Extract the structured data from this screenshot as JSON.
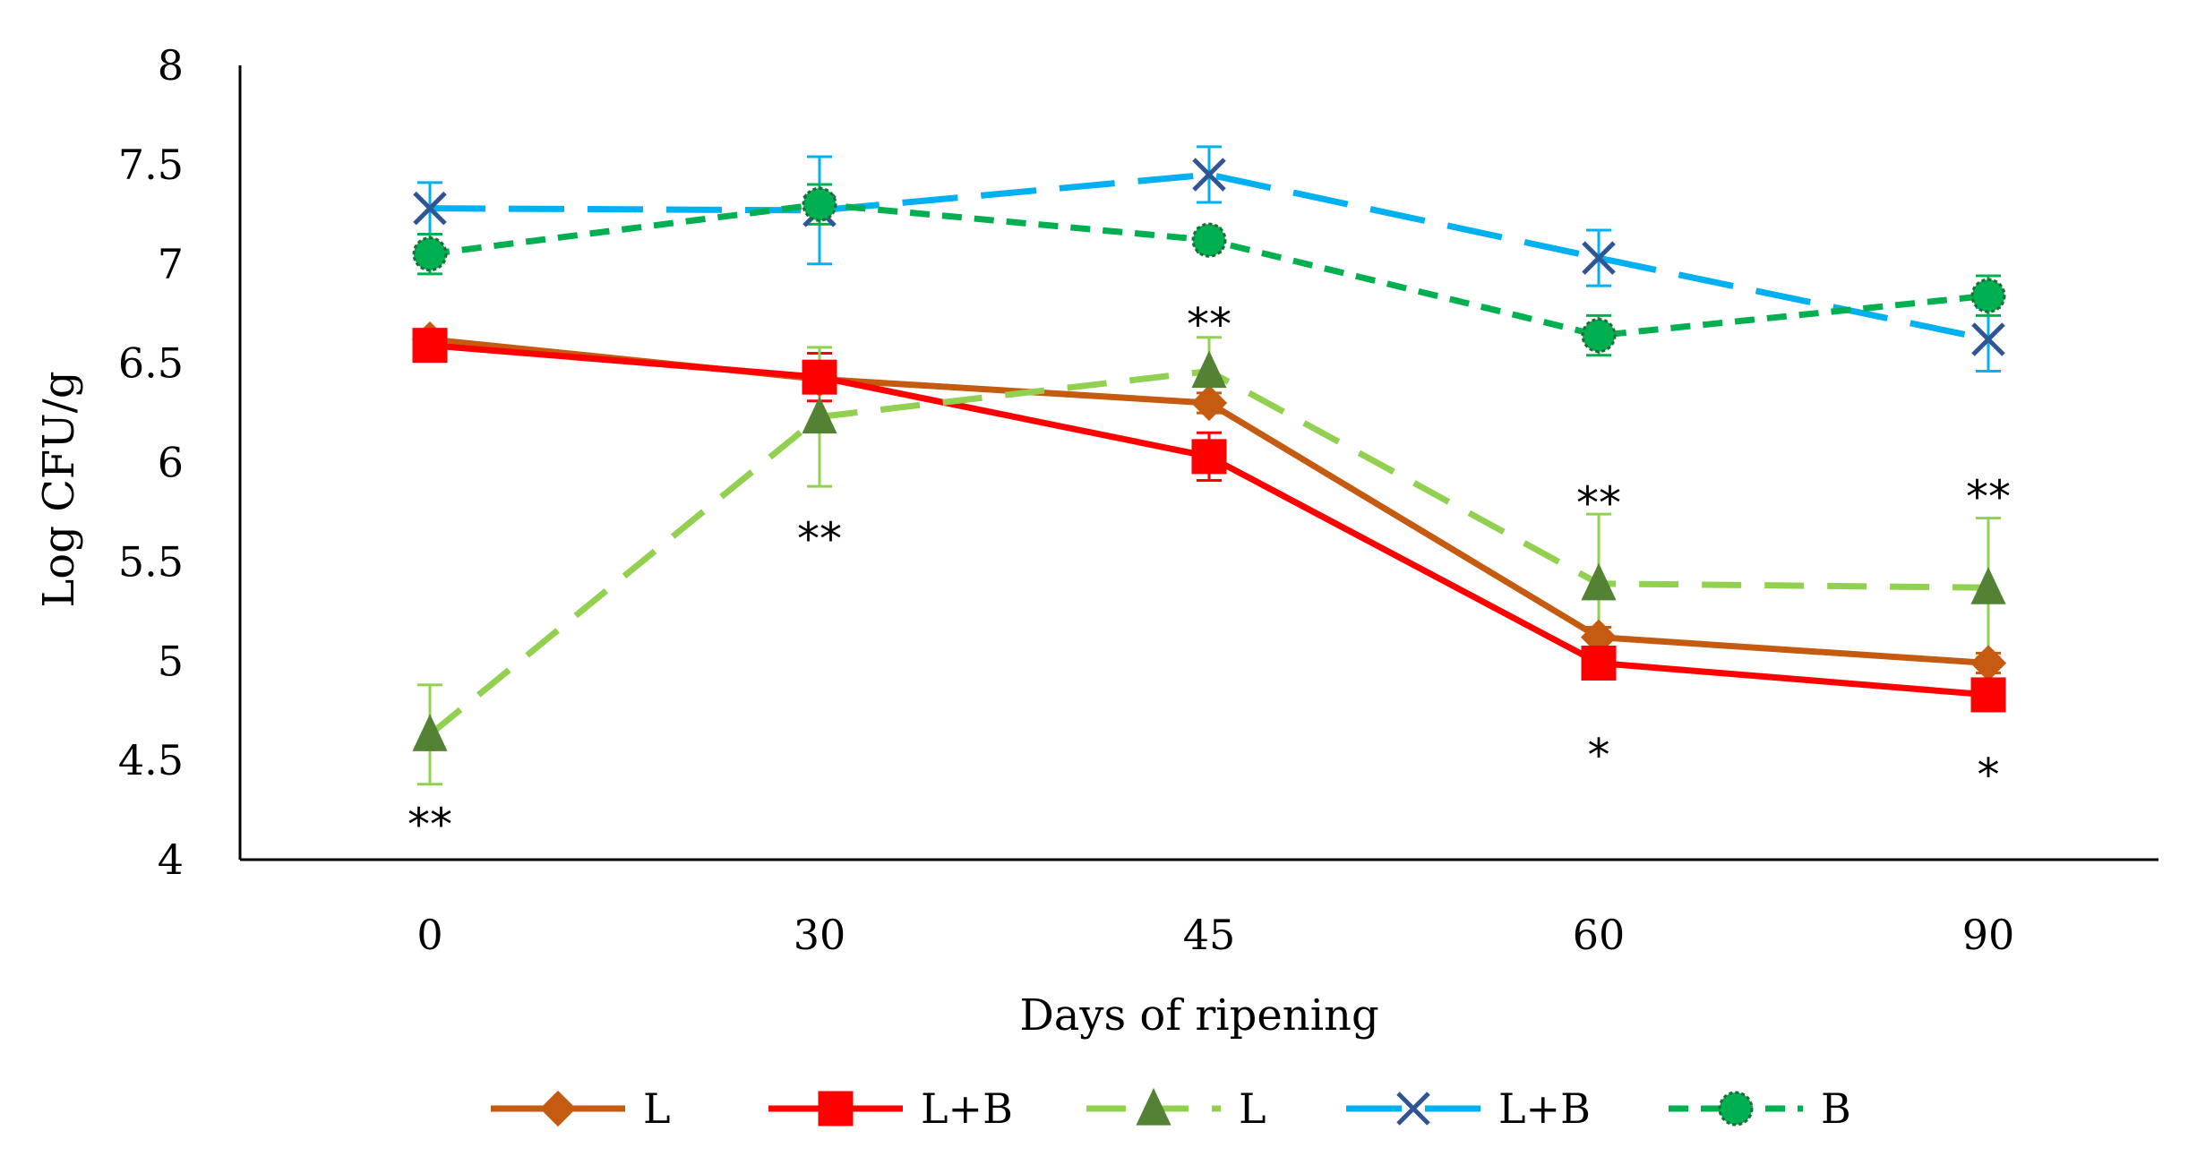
{
  "chart_data": {
    "type": "line",
    "title": "",
    "xlabel": "Days of ripening",
    "ylabel": "Log CFU/g",
    "categories": [
      "0",
      "30",
      "45",
      "60",
      "90"
    ],
    "ylim": [
      4,
      8
    ],
    "yticks": [
      "4",
      "4.5",
      "5",
      "5.5",
      "6",
      "6.5",
      "7",
      "7.5",
      "8"
    ],
    "grid": false,
    "legend_position": "bottom",
    "series": [
      {
        "name": "L",
        "color": "#C55A11",
        "line_style": "solid",
        "marker": "diamond",
        "values": [
          6.62,
          6.42,
          6.3,
          5.12,
          4.99
        ],
        "errors": [
          0.05,
          0.05,
          0.05,
          0.05,
          0.05
        ]
      },
      {
        "name": "L+B",
        "color": "#FF0000",
        "line_style": "solid",
        "marker": "square",
        "values": [
          6.59,
          6.43,
          6.03,
          4.99,
          4.83
        ],
        "errors": [
          0.07,
          0.12,
          0.12,
          0.07,
          0.06
        ]
      },
      {
        "name": "L",
        "color": "#92D050",
        "marker_color": "#548235",
        "line_style": "dash",
        "marker": "triangle",
        "values": [
          4.63,
          6.23,
          6.46,
          5.39,
          5.37
        ],
        "errors": [
          0.25,
          0.35,
          0.17,
          0.35,
          0.35
        ]
      },
      {
        "name": "L+B",
        "color": "#00B0F0",
        "marker_color": "#2F5597",
        "line_style": "longdash",
        "marker": "x",
        "values": [
          7.28,
          7.27,
          7.45,
          7.03,
          6.62
        ],
        "errors": [
          0.13,
          0.27,
          0.14,
          0.14,
          0.16
        ]
      },
      {
        "name": "B",
        "color": "#00B050",
        "marker_color": "#00B050",
        "line_style": "shortdash",
        "marker": "circle",
        "values": [
          7.05,
          7.3,
          7.12,
          6.64,
          6.84
        ],
        "errors": [
          0.1,
          0.1,
          0.06,
          0.1,
          0.1
        ]
      }
    ],
    "annotations": [
      {
        "text": "**",
        "category": "0",
        "y": 4.18
      },
      {
        "text": "**",
        "category": "30",
        "y": 5.62
      },
      {
        "text": "**",
        "category": "45",
        "y": 6.7
      },
      {
        "text": "**",
        "category": "60",
        "y": 5.8
      },
      {
        "text": "*",
        "category": "60",
        "y": 4.53
      },
      {
        "text": "**",
        "category": "90",
        "y": 5.83
      },
      {
        "text": "*",
        "category": "90",
        "y": 4.43
      }
    ]
  }
}
